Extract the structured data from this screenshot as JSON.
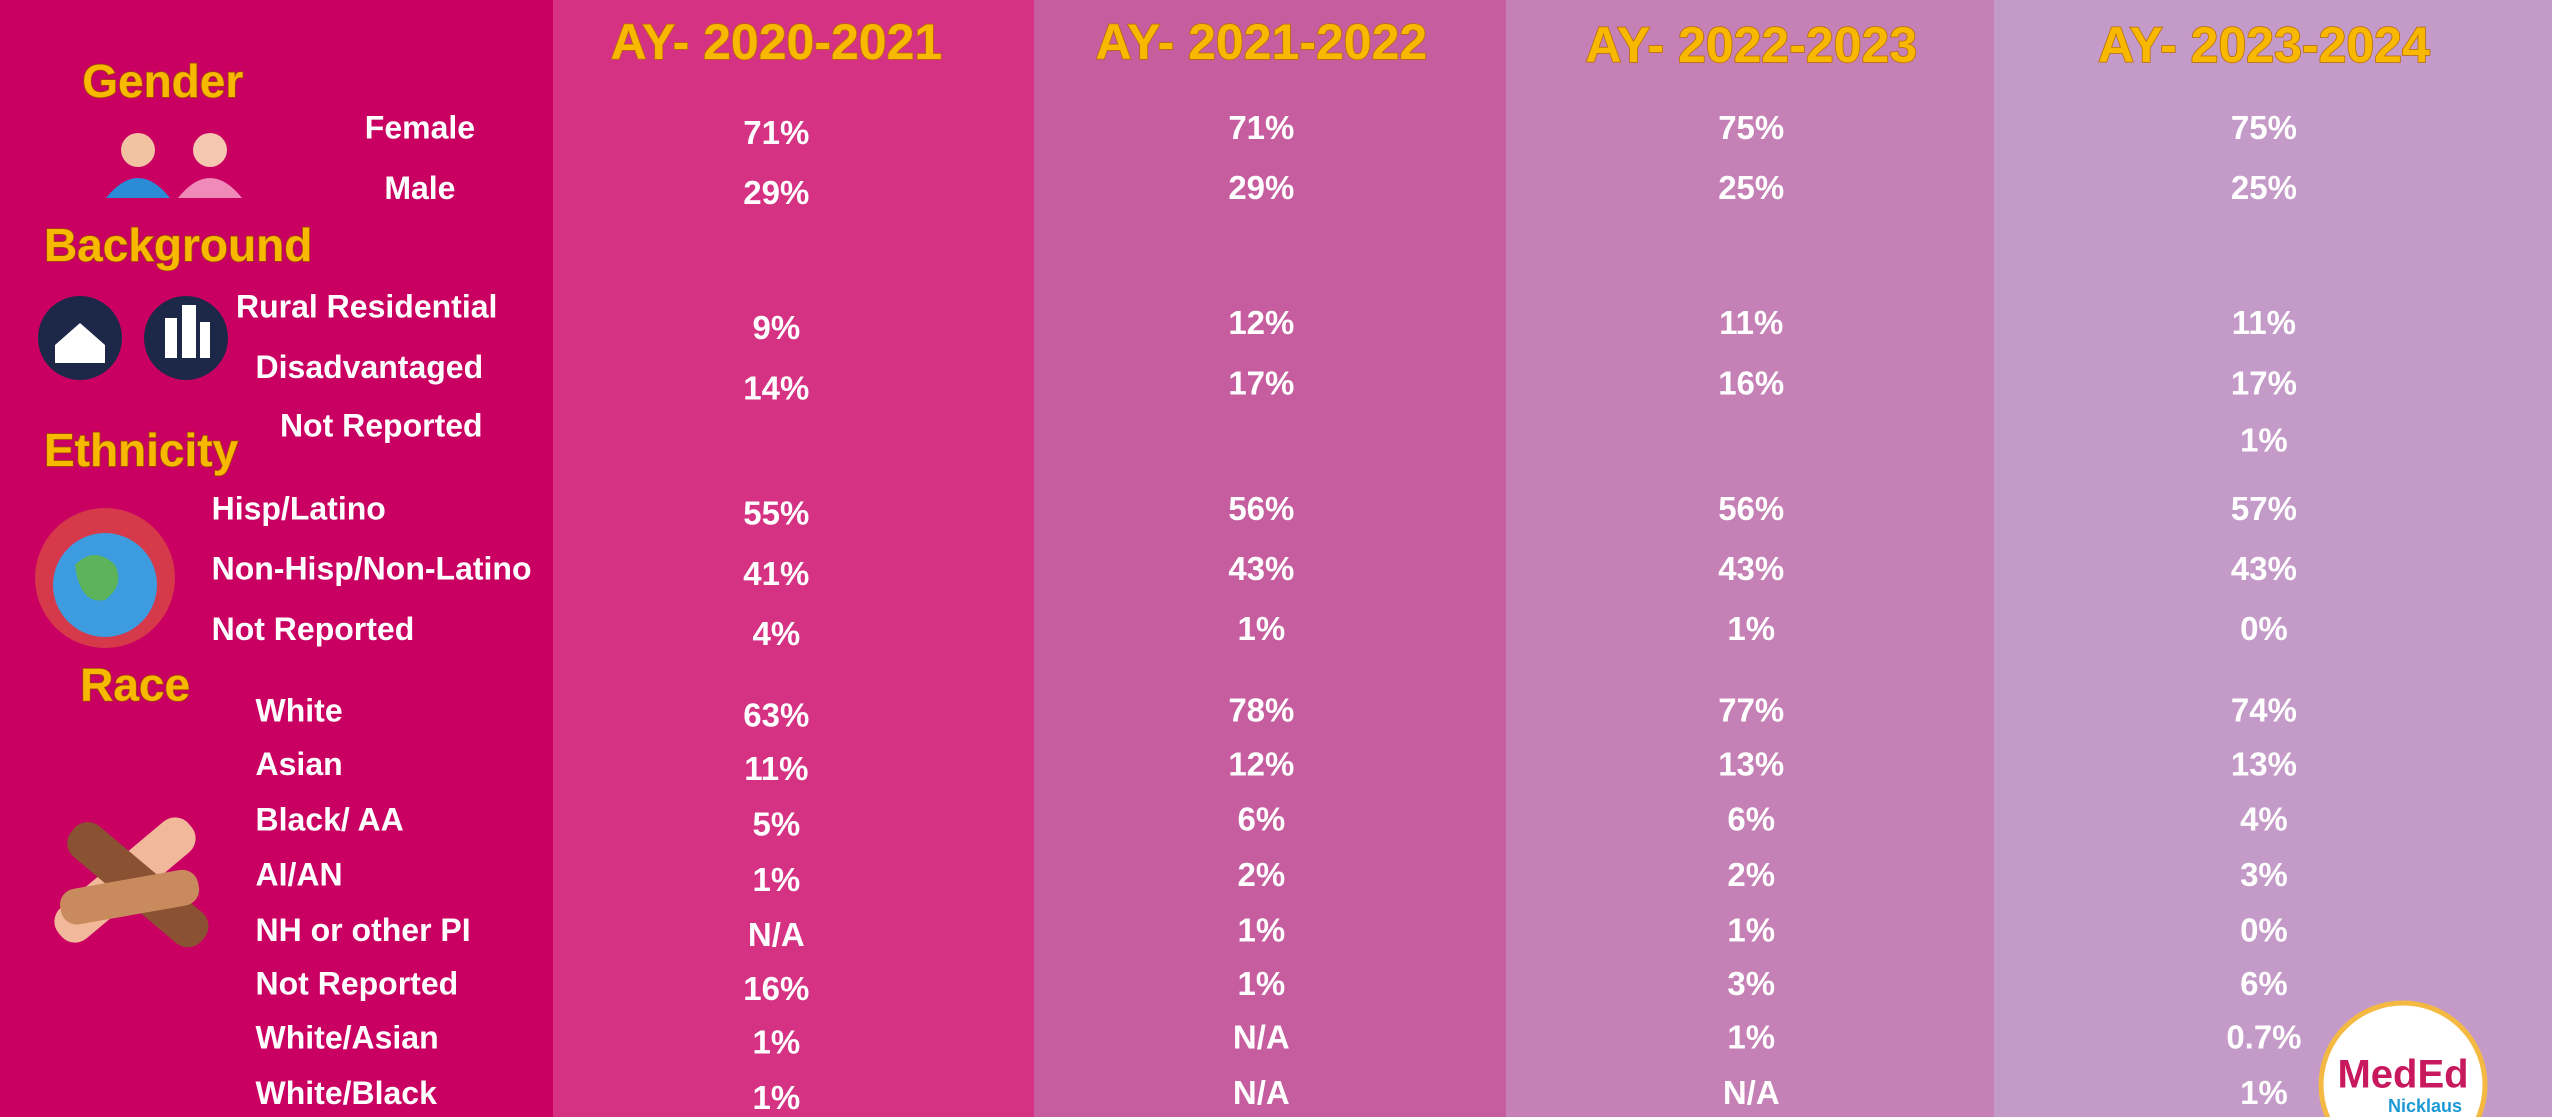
{
  "headers": [
    "AY- 2020-2021",
    "AY- 2021-2022",
    "AY- 2022-2023",
    "AY- 2023-2024"
  ],
  "sections": [
    {
      "title": "Gender",
      "rows": [
        {
          "label": "Female",
          "values": [
            "71%",
            "71%",
            "75%",
            "75%"
          ]
        },
        {
          "label": "Male",
          "values": [
            "29%",
            "29%",
            "25%",
            "25%"
          ]
        }
      ]
    },
    {
      "title": "Background",
      "rows": [
        {
          "label": "Rural Residential",
          "values": [
            "9%",
            "12%",
            "11%",
            "11%"
          ]
        },
        {
          "label": "Disadvantaged",
          "values": [
            "14%",
            "17%",
            "16%",
            "17%"
          ]
        },
        {
          "label": "Not Reported",
          "values": [
            null,
            null,
            null,
            "1%"
          ]
        }
      ]
    },
    {
      "title": "Ethnicity",
      "rows": [
        {
          "label": "Hisp/Latino",
          "values": [
            "55%",
            "56%",
            "56%",
            "57%"
          ]
        },
        {
          "label": "Non-Hisp/Non-Latino",
          "values": [
            "41%",
            "43%",
            "43%",
            "43%"
          ]
        },
        {
          "label": "Not Reported",
          "values": [
            "4%",
            "1%",
            "1%",
            "0%"
          ]
        }
      ]
    },
    {
      "title": "Race",
      "rows": [
        {
          "label": "White",
          "values": [
            "63%",
            "78%",
            "77%",
            "74%"
          ]
        },
        {
          "label": "Asian",
          "values": [
            "11%",
            "12%",
            "13%",
            "13%"
          ]
        },
        {
          "label": "Black/ AA",
          "values": [
            "5%",
            "6%",
            "6%",
            "4%"
          ]
        },
        {
          "label": "AI/AN",
          "values": [
            "1%",
            "2%",
            "2%",
            "3%"
          ]
        },
        {
          "label": "NH or other PI",
          "values": [
            "N/A",
            "1%",
            "1%",
            "0%"
          ]
        },
        {
          "label": "Not Reported",
          "values": [
            "16%",
            "1%",
            "3%",
            "6%"
          ]
        },
        {
          "label": "White/Asian",
          "values": [
            "1%",
            "N/A",
            "1%",
            "0.7%"
          ]
        },
        {
          "label": "White/Black",
          "values": [
            "1%",
            "N/A",
            "N/A",
            "1%"
          ]
        }
      ]
    }
  ],
  "logo": {
    "title": "MedEd",
    "subtitle": "Nicklaus"
  }
}
